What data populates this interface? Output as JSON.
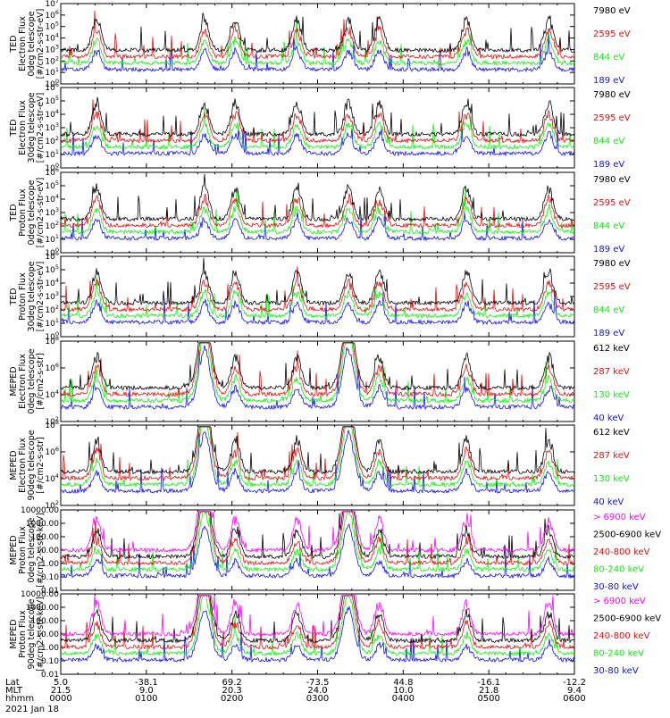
{
  "colors": {
    "black": "#000000",
    "blue": "#1010ee",
    "red": "#e01010",
    "green": "#10ee10",
    "magenta": "#ff00ff"
  },
  "x_axis": {
    "tick_rows": [
      {
        "label": "Lat",
        "values": [
          "5.0",
          "-38.1",
          "69.2",
          "-73.5",
          "44.8",
          "-16.1",
          "-12.2"
        ]
      },
      {
        "label": "MLT",
        "values": [
          "21.5",
          "9.0",
          "20.3",
          "24.0",
          "10.0",
          "21.8",
          "9.4"
        ]
      },
      {
        "label": "hhmm",
        "values": [
          "0000",
          "0100",
          "0200",
          "0300",
          "0400",
          "0500",
          "0600"
        ]
      }
    ],
    "date": "2021 Jan 18"
  },
  "chart_data": [
    {
      "type": "line",
      "ylabel": [
        "TED",
        "Electron Flux",
        "0deg telescope",
        "[#/cm2-s-str-eV]"
      ],
      "yscale": "log",
      "ytick_labels": [
        "10^0",
        "10^1",
        "10^2",
        "10^3",
        "10^4",
        "10^5",
        "10^6",
        "10^7"
      ],
      "ylim": [
        1,
        10000000
      ],
      "series": [
        {
          "name": "7980 eV",
          "color": "black"
        },
        {
          "name": "2595 eV",
          "color": "red"
        },
        {
          "name": "844 eV",
          "color": "green"
        },
        {
          "name": "189 eV",
          "color": "blue"
        }
      ]
    },
    {
      "type": "line",
      "ylabel": [
        "TED",
        "Electron Flux",
        "30deg telescope",
        "[#/cm2-s-str-eV]"
      ],
      "yscale": "log",
      "ytick_labels": [
        "10^0",
        "10^1",
        "10^2",
        "10^3",
        "10^4",
        "10^5",
        "10^6"
      ],
      "ylim": [
        1,
        1000000
      ],
      "series": [
        {
          "name": "7980 eV",
          "color": "black"
        },
        {
          "name": "2595 eV",
          "color": "red"
        },
        {
          "name": "844 eV",
          "color": "green"
        },
        {
          "name": "189 eV",
          "color": "blue"
        }
      ]
    },
    {
      "type": "line",
      "ylabel": [
        "TED",
        "Proton Flux",
        "0deg telescope",
        "[#/cm2-s-str-eV]"
      ],
      "yscale": "log",
      "ytick_labels": [
        "10^0",
        "10^1",
        "10^2",
        "10^3",
        "10^4",
        "10^5",
        "10^6"
      ],
      "ylim": [
        1,
        1000000
      ],
      "series": [
        {
          "name": "7980 eV",
          "color": "black"
        },
        {
          "name": "2595 eV",
          "color": "red"
        },
        {
          "name": "844 eV",
          "color": "green"
        },
        {
          "name": "189 eV",
          "color": "blue"
        }
      ]
    },
    {
      "type": "line",
      "ylabel": [
        "TED",
        "Proton Flux",
        "30deg telescope",
        "[#/cm2-s-str-eV]"
      ],
      "yscale": "log",
      "ytick_labels": [
        "10^0",
        "10^1",
        "10^2",
        "10^3",
        "10^4",
        "10^5",
        "10^6"
      ],
      "ylim": [
        1,
        1000000
      ],
      "series": [
        {
          "name": "7980 eV",
          "color": "black"
        },
        {
          "name": "2595 eV",
          "color": "red"
        },
        {
          "name": "844 eV",
          "color": "green"
        },
        {
          "name": "189 eV",
          "color": "blue"
        }
      ]
    },
    {
      "type": "line",
      "ylabel": [
        "MEPED",
        "Electron Flux",
        "0deg telescope",
        "[#/cm2-s-str]"
      ],
      "yscale": "log",
      "ytick_labels": [
        "10^2",
        "10^4",
        "10^6",
        "10^8"
      ],
      "ylim": [
        10,
        100000000
      ],
      "series": [
        {
          "name": "612 keV",
          "color": "black"
        },
        {
          "name": "287 keV",
          "color": "red"
        },
        {
          "name": "130 keV",
          "color": "green"
        },
        {
          "name": "40 keV",
          "color": "blue"
        }
      ]
    },
    {
      "type": "line",
      "ylabel": [
        "MEPED",
        "Electron Flux",
        "90deg telescope",
        "[#/cm2-s-str]"
      ],
      "yscale": "log",
      "ytick_labels": [
        "10^2",
        "10^4",
        "10^6",
        "10^8"
      ],
      "ylim": [
        10,
        100000000
      ],
      "series": [
        {
          "name": "612 keV",
          "color": "black"
        },
        {
          "name": "287 keV",
          "color": "red"
        },
        {
          "name": "130 keV",
          "color": "green"
        },
        {
          "name": "40 keV",
          "color": "blue"
        }
      ]
    },
    {
      "type": "line",
      "ylabel": [
        "MEPED",
        "Proton Flux",
        "0deg telescope",
        "[#/cm2-s-str-keV]"
      ],
      "yscale": "log",
      "ytick_labels": [
        "0.01",
        "0.10",
        "1.00",
        "10.00",
        "100.00",
        "1000.00",
        "10000.00"
      ],
      "ylim": [
        0.01,
        10000
      ],
      "series": [
        {
          "name": "> 6900 keV",
          "color": "magenta"
        },
        {
          "name": "2500-6900 keV",
          "color": "black"
        },
        {
          "name": "240-800 keV",
          "color": "red"
        },
        {
          "name": "80-240 keV",
          "color": "green"
        },
        {
          "name": "30-80 keV",
          "color": "blue"
        }
      ]
    },
    {
      "type": "line",
      "ylabel": [
        "MEPED",
        "Proton Flux",
        "90deg telescope",
        "[#/cm2-s-str-keV]"
      ],
      "yscale": "log",
      "ytick_labels": [
        "0.01",
        "0.10",
        "1.00",
        "10.00",
        "100.00",
        "1000.00",
        "10000.00"
      ],
      "ylim": [
        0.01,
        10000
      ],
      "series": [
        {
          "name": "> 6900 keV",
          "color": "magenta"
        },
        {
          "name": "2500-6900 keV",
          "color": "black"
        },
        {
          "name": "240-800 keV",
          "color": "red"
        },
        {
          "name": "80-240 keV",
          "color": "green"
        },
        {
          "name": "30-80 keV",
          "color": "blue"
        }
      ]
    }
  ]
}
